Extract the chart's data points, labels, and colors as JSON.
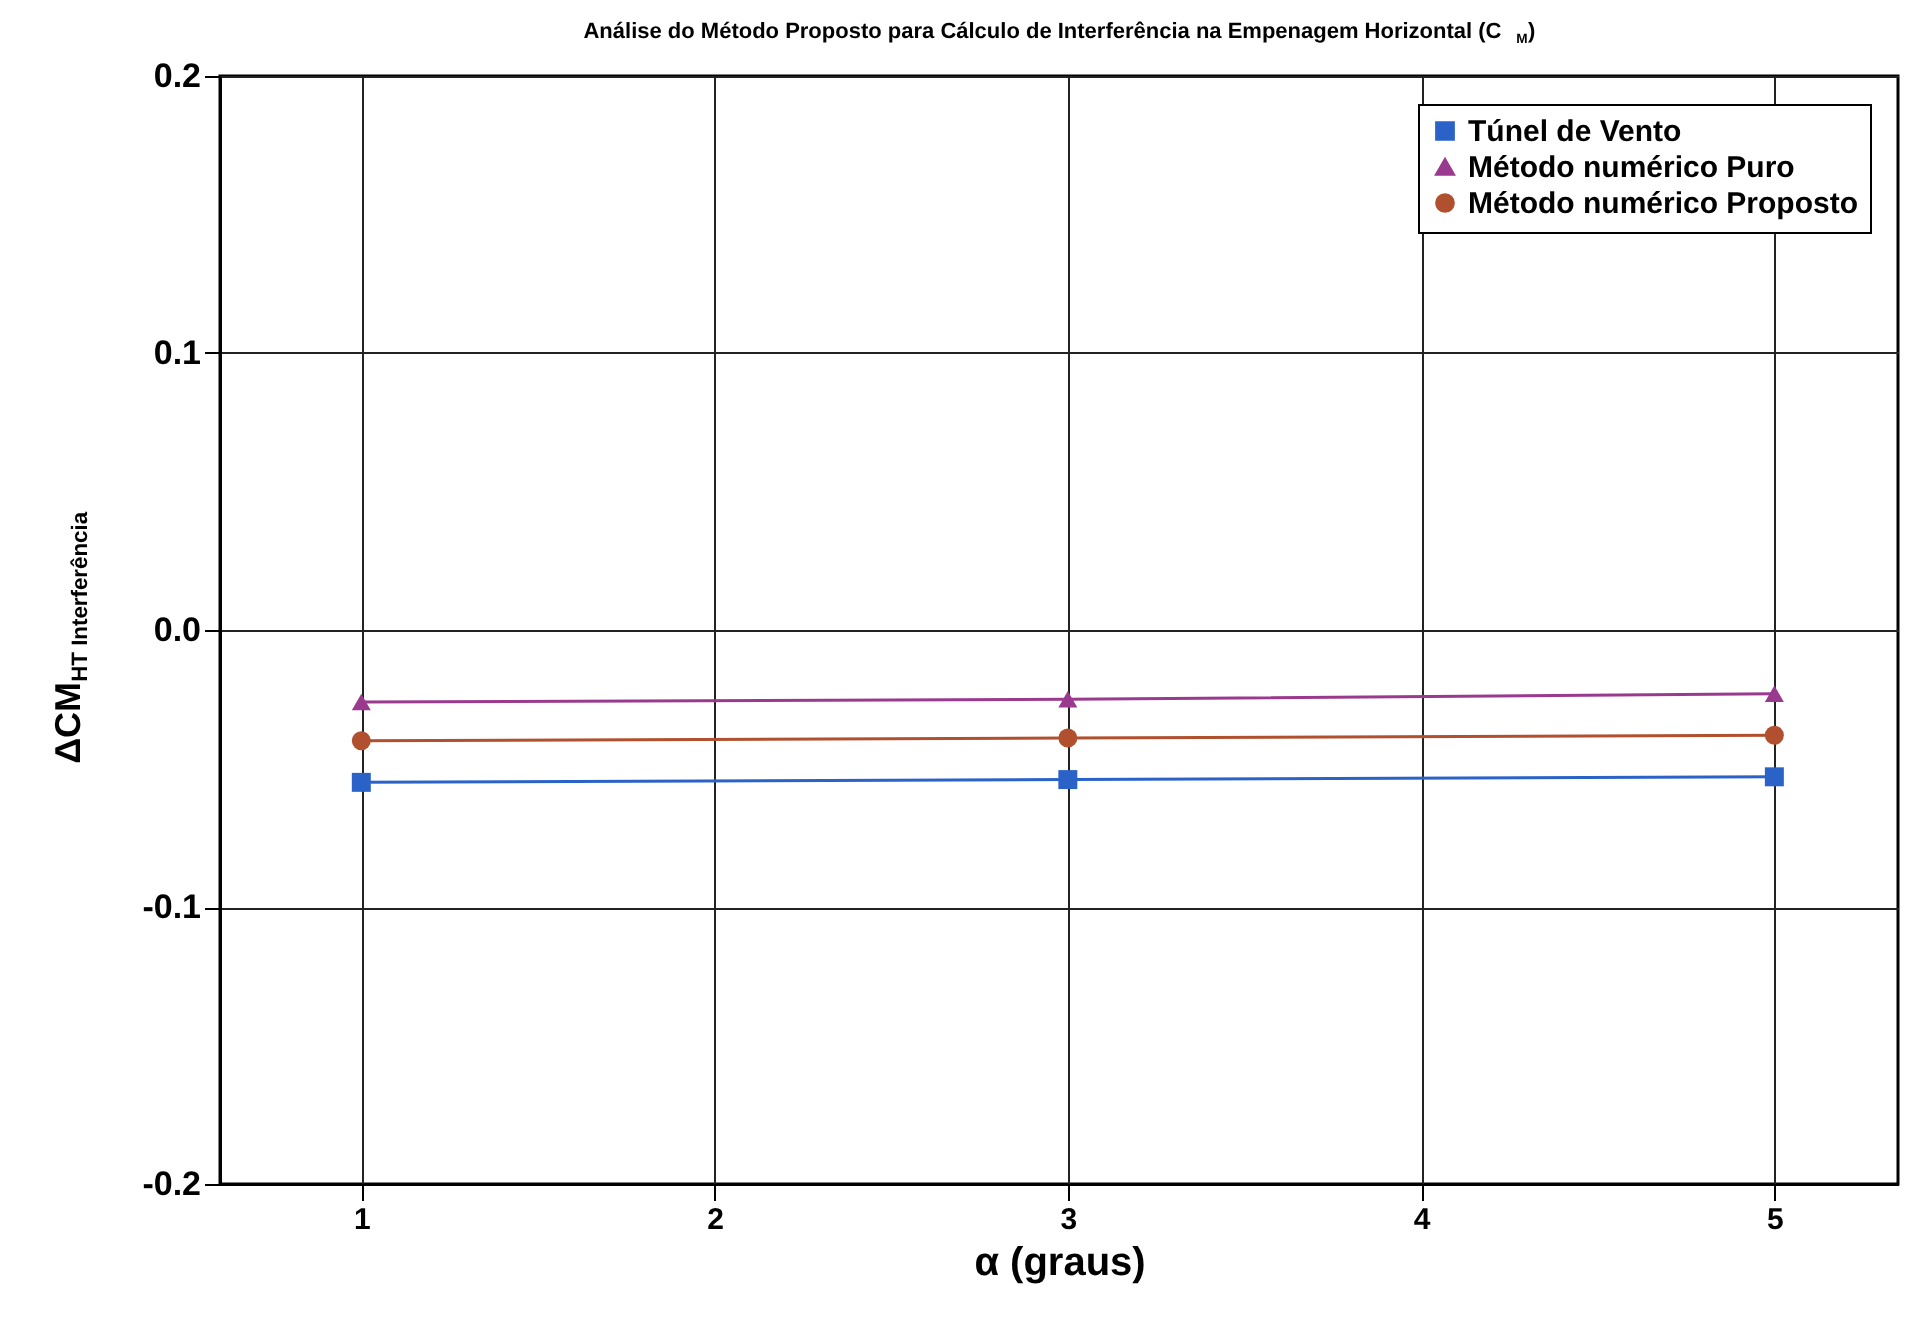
{
  "chart_data": {
    "type": "line",
    "title": "Análise do Método Proposto para Cálculo de Interferência na Empenagem Horizontal (C$_{M}$)",
    "xlabel": "α (graus)",
    "ylabel": "ΔCM$_{HT Interferência}$",
    "x": [
      1,
      3,
      5
    ],
    "series": [
      {
        "name": "Túnel de Vento",
        "color": "#2a62c8",
        "marker": "square",
        "values": [
          -0.055,
          -0.054,
          -0.053
        ]
      },
      {
        "name": "Método numérico Puro",
        "color": "#9a3a8e",
        "marker": "triangle",
        "values": [
          -0.026,
          -0.025,
          -0.023
        ]
      },
      {
        "name": "Método numérico Proposto",
        "color": "#b0502e",
        "marker": "circle",
        "values": [
          -0.04,
          -0.039,
          -0.038
        ]
      }
    ],
    "xlim": [
      0.6,
      5.35
    ],
    "xticks": [
      1,
      2,
      3,
      4,
      5
    ],
    "ylim": [
      -0.2,
      0.2
    ],
    "yticks": [
      {
        "value": -0.2,
        "label": "-0.2"
      },
      {
        "value": -0.1,
        "label": "-0.1"
      },
      {
        "value": 0,
        "label": "0.0"
      },
      {
        "value": 0.1,
        "label": "0.1"
      },
      {
        "value": 0.2,
        "label": "0.2"
      }
    ],
    "grid": true,
    "legend": "top right",
    "line_style": "solid"
  }
}
